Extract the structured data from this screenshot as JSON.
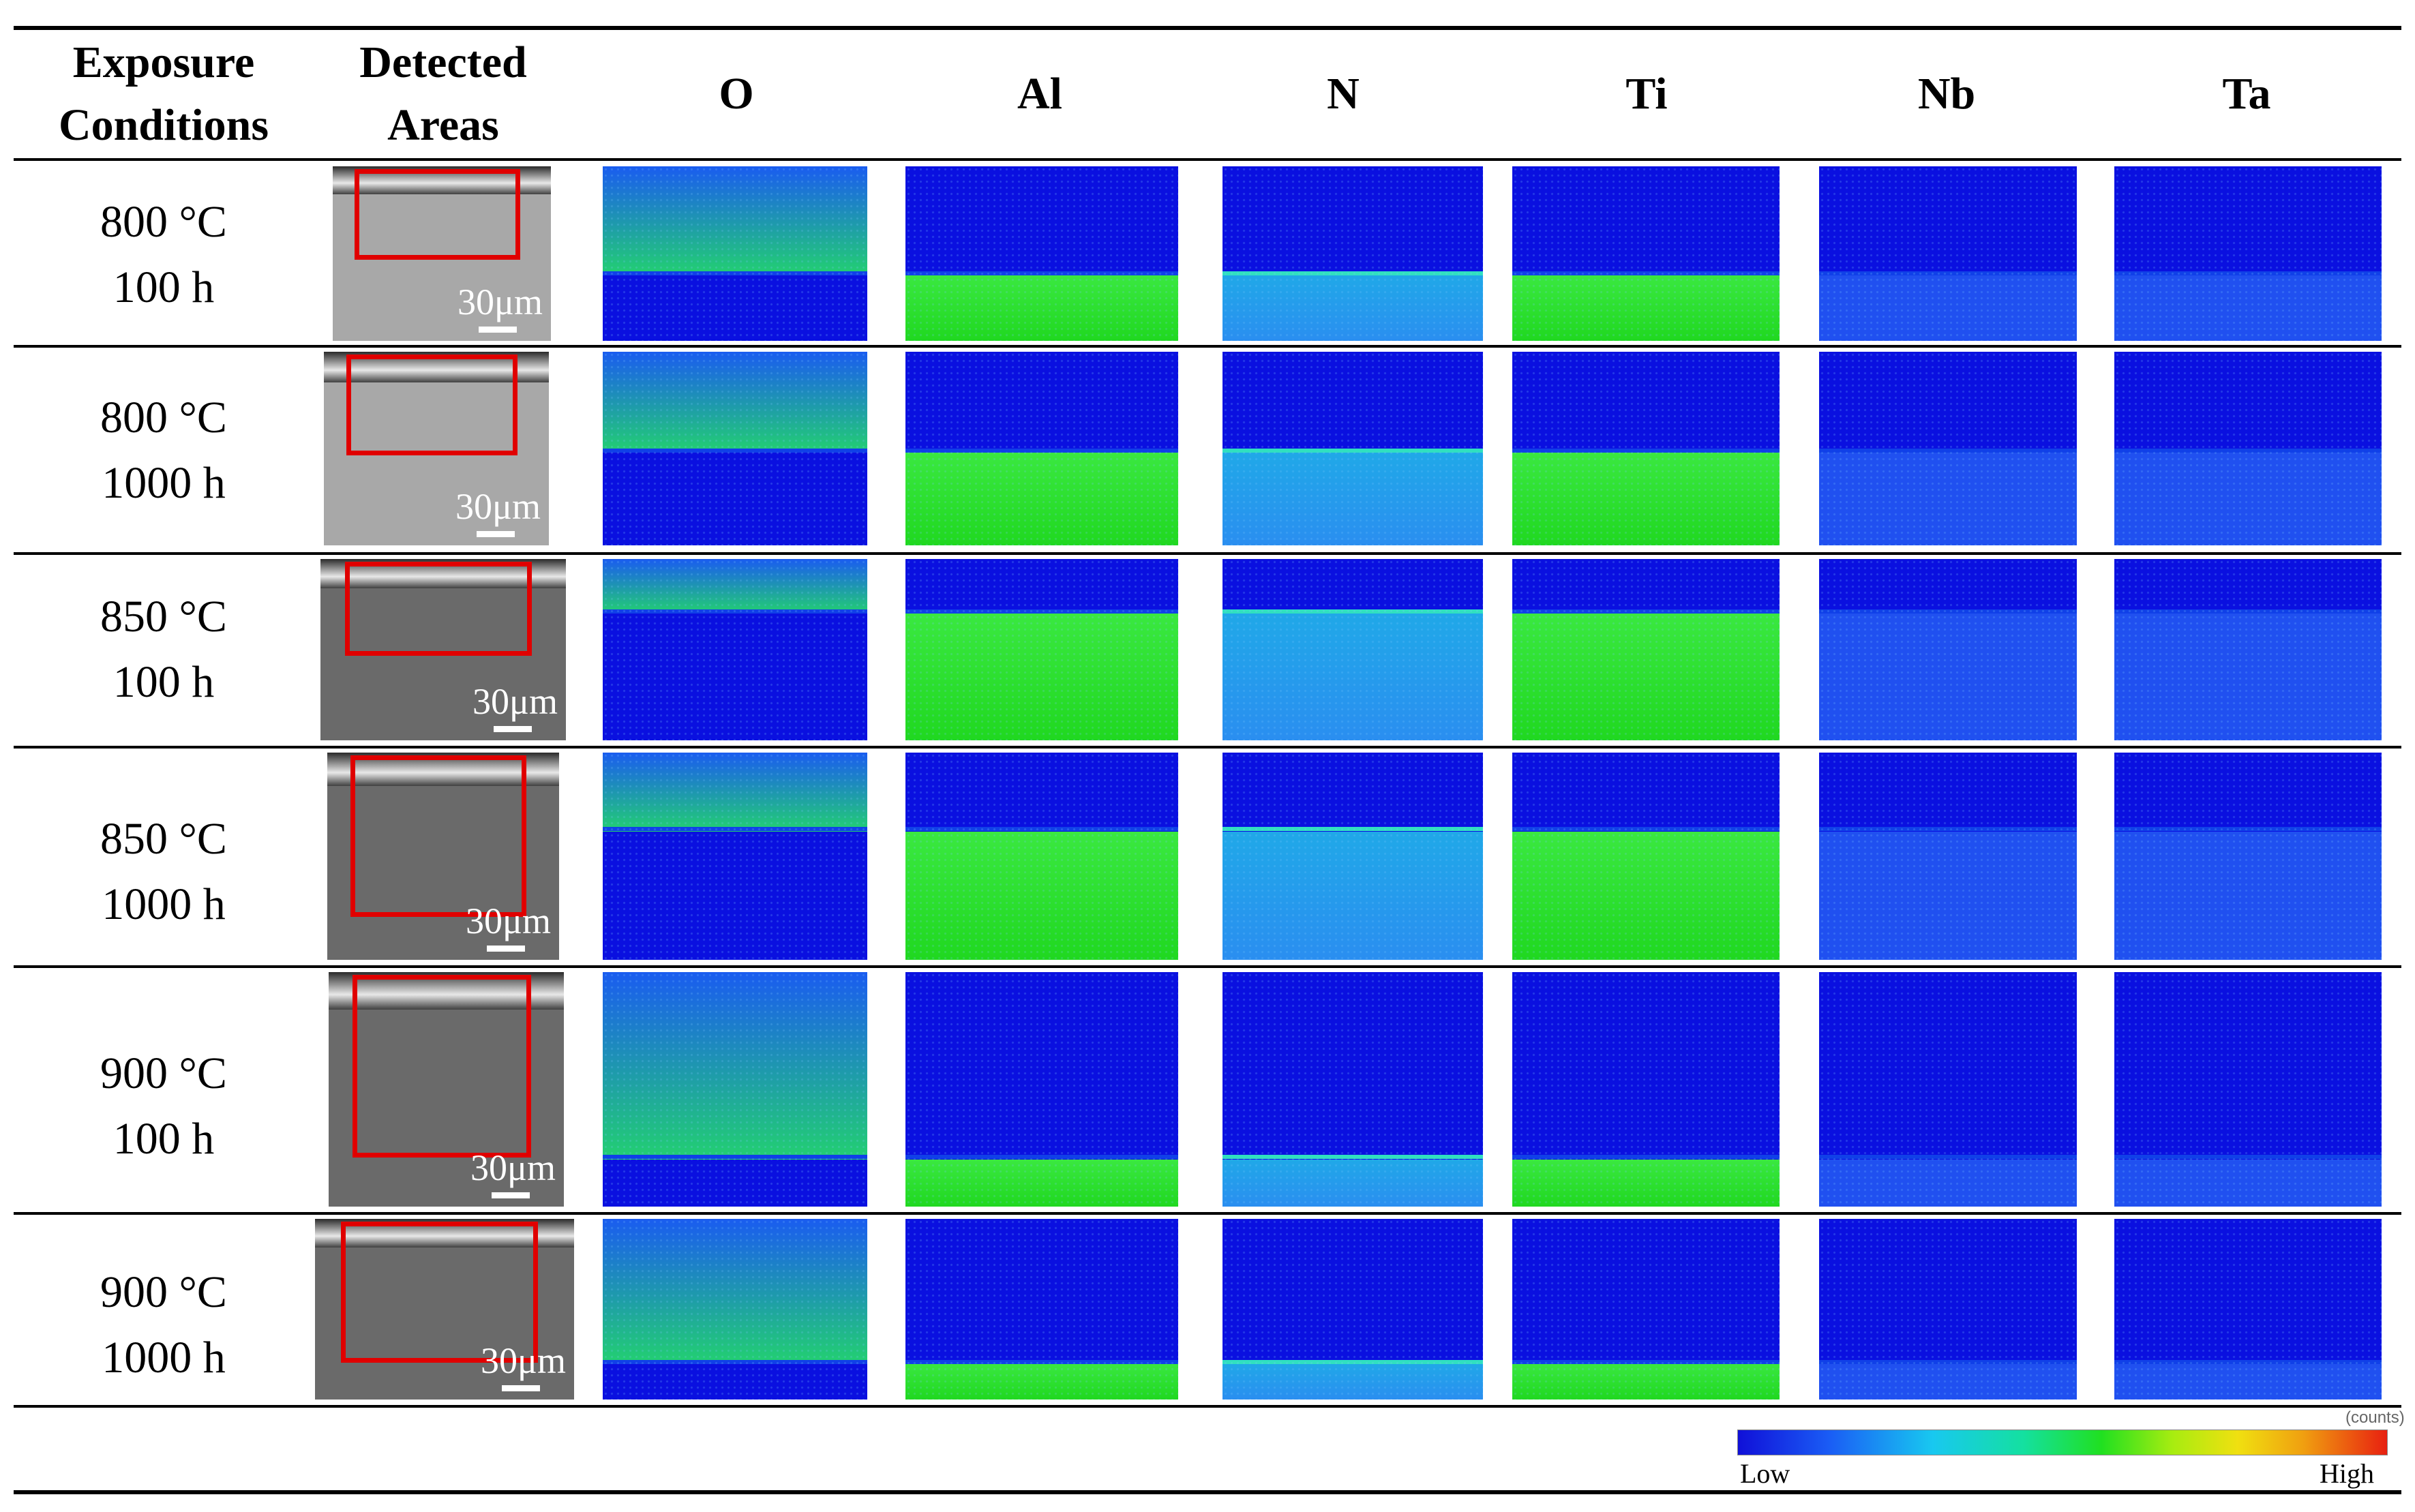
{
  "headers": {
    "exposure": "Exposure Conditions",
    "detected": "Detected Areas",
    "elements": [
      "O",
      "Al",
      "N",
      "Ti",
      "Nb",
      "Ta"
    ]
  },
  "rows": [
    {
      "temperature": "800 °C",
      "time": "100 h",
      "scale": "30μm"
    },
    {
      "temperature": "800 °C",
      "time": "1000 h",
      "scale": "30μm"
    },
    {
      "temperature": "850 °C",
      "time": "100 h",
      "scale": "30μm"
    },
    {
      "temperature": "850 °C",
      "time": "1000 h",
      "scale": "30μm"
    },
    {
      "temperature": "900 °C",
      "time": "100 h",
      "scale": "30μm"
    },
    {
      "temperature": "900 °C",
      "time": "1000 h",
      "scale": "30μm"
    }
  ],
  "legend": {
    "unit": "(counts)",
    "low": "Low",
    "high": "High"
  },
  "colors": {
    "low": "#0a10e0",
    "mid": "#2050f0",
    "green": "#24e024",
    "cyan": "#20a0f0",
    "high": "#e82010",
    "frame": "#e00000"
  }
}
